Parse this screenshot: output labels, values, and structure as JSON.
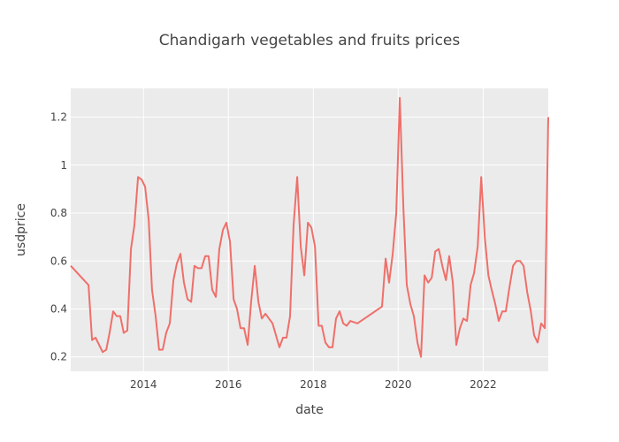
{
  "chart_data": {
    "type": "line",
    "title": "Chandigarh vegetables and fruits prices",
    "xlabel": "date",
    "ylabel": "usdprice",
    "xlim": [
      "2012-04-15",
      "2023-07-15"
    ],
    "ylim": [
      0.14,
      1.32
    ],
    "x_ticks": [
      "2014-01-01",
      "2016-01-01",
      "2018-01-01",
      "2020-01-01",
      "2022-01-01"
    ],
    "x_tick_labels": [
      "2014",
      "2016",
      "2018",
      "2020",
      "2022"
    ],
    "y_ticks": [
      0.2,
      0.4,
      0.6,
      0.8,
      1.0,
      1.2
    ],
    "y_tick_labels": [
      "0.2",
      "0.4",
      "0.6",
      "0.8",
      "1",
      "1.2"
    ],
    "grid": true,
    "line_color": "#ef6f6a",
    "background_color": "#ebebeb",
    "series": [
      {
        "x": [
          "2012-04-15",
          "2012-09-15",
          "2012-10-15",
          "2012-11-15",
          "2013-01-15",
          "2013-02-15",
          "2013-03-15",
          "2013-04-15",
          "2013-05-15",
          "2013-06-15",
          "2013-07-15",
          "2013-08-15",
          "2013-09-15",
          "2013-10-15",
          "2013-11-15",
          "2013-12-15",
          "2014-01-15",
          "2014-02-15",
          "2014-03-15",
          "2014-04-15",
          "2014-05-15",
          "2014-06-15",
          "2014-07-15",
          "2014-08-15",
          "2014-09-15",
          "2014-10-15",
          "2014-11-15",
          "2014-12-15",
          "2015-01-15",
          "2015-02-15",
          "2015-03-15",
          "2015-04-15",
          "2015-05-15",
          "2015-06-15",
          "2015-07-15",
          "2015-08-15",
          "2015-09-15",
          "2015-10-15",
          "2015-11-15",
          "2015-12-15",
          "2016-01-15",
          "2016-02-15",
          "2016-03-15",
          "2016-04-15",
          "2016-05-15",
          "2016-06-15",
          "2016-07-15",
          "2016-08-15",
          "2016-09-15",
          "2016-10-15",
          "2016-11-15",
          "2016-12-15",
          "2017-01-15",
          "2017-03-15",
          "2017-04-15",
          "2017-05-15",
          "2017-06-15",
          "2017-07-15",
          "2017-08-15",
          "2017-09-15",
          "2017-10-15",
          "2017-11-15",
          "2017-12-15",
          "2018-01-15",
          "2018-02-15",
          "2018-03-15",
          "2018-04-15",
          "2018-05-15",
          "2018-06-15",
          "2018-07-15",
          "2018-08-15",
          "2018-09-15",
          "2018-10-15",
          "2018-11-15",
          "2019-01-15",
          "2019-08-15",
          "2019-09-15",
          "2019-10-15",
          "2019-11-15",
          "2019-12-15",
          "2020-01-15",
          "2020-02-15",
          "2020-03-15",
          "2020-04-15",
          "2020-05-15",
          "2020-06-15",
          "2020-07-15",
          "2020-08-15",
          "2020-09-15",
          "2020-10-15",
          "2020-11-15",
          "2020-12-15",
          "2021-01-15",
          "2021-02-15",
          "2021-03-15",
          "2021-04-15",
          "2021-05-15",
          "2021-06-15",
          "2021-07-15",
          "2021-08-15",
          "2021-09-15",
          "2021-10-15",
          "2021-11-15",
          "2021-12-15",
          "2022-01-15",
          "2022-02-15",
          "2022-03-15",
          "2022-04-15",
          "2022-05-15",
          "2022-06-15",
          "2022-07-15",
          "2022-08-15",
          "2022-09-15",
          "2022-10-15",
          "2022-11-15",
          "2022-12-15",
          "2023-01-15",
          "2023-02-15",
          "2023-03-15",
          "2023-04-15",
          "2023-05-15",
          "2023-06-15",
          "2023-07-15"
        ],
        "y": [
          0.58,
          0.5,
          0.27,
          0.28,
          0.22,
          0.23,
          0.3,
          0.39,
          0.37,
          0.37,
          0.3,
          0.31,
          0.65,
          0.75,
          0.95,
          0.94,
          0.91,
          0.77,
          0.48,
          0.37,
          0.23,
          0.23,
          0.3,
          0.34,
          0.52,
          0.59,
          0.63,
          0.51,
          0.44,
          0.43,
          0.58,
          0.57,
          0.57,
          0.62,
          0.62,
          0.48,
          0.45,
          0.65,
          0.73,
          0.76,
          0.68,
          0.44,
          0.4,
          0.32,
          0.32,
          0.25,
          0.43,
          0.58,
          0.43,
          0.36,
          0.38,
          0.36,
          0.34,
          0.24,
          0.28,
          0.28,
          0.37,
          0.75,
          0.95,
          0.66,
          0.54,
          0.76,
          0.74,
          0.66,
          0.33,
          0.33,
          0.26,
          0.24,
          0.24,
          0.36,
          0.39,
          0.34,
          0.33,
          0.35,
          0.34,
          0.41,
          0.61,
          0.51,
          0.63,
          0.8,
          1.28,
          0.82,
          0.5,
          0.42,
          0.37,
          0.26,
          0.2,
          0.54,
          0.51,
          0.53,
          0.64,
          0.65,
          0.58,
          0.52,
          0.62,
          0.51,
          0.25,
          0.32,
          0.36,
          0.35,
          0.5,
          0.55,
          0.66,
          0.95,
          0.7,
          0.54,
          0.48,
          0.42,
          0.35,
          0.39,
          0.39,
          0.49,
          0.58,
          0.6,
          0.6,
          0.58,
          0.47,
          0.39,
          0.29,
          0.26,
          0.34,
          0.32,
          1.2
        ]
      }
    ]
  }
}
